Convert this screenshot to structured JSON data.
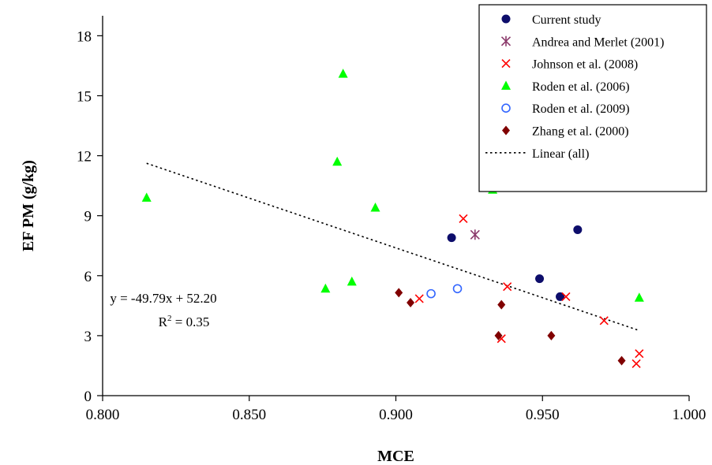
{
  "chart_data": {
    "type": "scatter",
    "title": "",
    "xlabel": "MCE",
    "ylabel": "EF PM (g/kg)",
    "xlim": [
      0.8,
      1.0
    ],
    "ylim": [
      0,
      19
    ],
    "xticks": [
      "0.800",
      "0.850",
      "0.900",
      "0.950",
      "1.000"
    ],
    "yticks": [
      "0",
      "3",
      "6",
      "9",
      "12",
      "15",
      "18"
    ],
    "grid": false,
    "legend_position": "top-right",
    "series": [
      {
        "name": "Current study",
        "marker": "circle-filled",
        "color": "#0d0d6b",
        "points": [
          [
            0.919,
            7.9
          ],
          [
            0.949,
            5.85
          ],
          [
            0.956,
            4.95
          ],
          [
            0.962,
            8.3
          ]
        ]
      },
      {
        "name": "Andrea and Merlet (2001)",
        "marker": "asterisk",
        "color": "#8b3a6b",
        "points": [
          [
            0.927,
            8.05
          ]
        ]
      },
      {
        "name": "Johnson et al. (2008)",
        "marker": "x",
        "color": "#ff0000",
        "points": [
          [
            0.908,
            4.85
          ],
          [
            0.923,
            8.85
          ],
          [
            0.936,
            2.85
          ],
          [
            0.938,
            5.45
          ],
          [
            0.958,
            4.95
          ],
          [
            0.971,
            3.75
          ],
          [
            0.983,
            2.1
          ],
          [
            0.982,
            1.6
          ]
        ]
      },
      {
        "name": "Roden et al. (2006)",
        "marker": "triangle-filled",
        "color": "#00ff00",
        "points": [
          [
            0.815,
            9.9
          ],
          [
            0.876,
            5.35
          ],
          [
            0.88,
            11.7
          ],
          [
            0.882,
            16.1
          ],
          [
            0.885,
            5.7
          ],
          [
            0.893,
            9.4
          ],
          [
            0.933,
            10.3
          ],
          [
            0.983,
            4.9
          ]
        ]
      },
      {
        "name": "Roden et al. (2009)",
        "marker": "circle-open",
        "color": "#3366ff",
        "points": [
          [
            0.912,
            5.1
          ],
          [
            0.921,
            5.35
          ]
        ]
      },
      {
        "name": "Zhang et al. (2000)",
        "marker": "diamond-filled",
        "color": "#800000",
        "points": [
          [
            0.901,
            5.15
          ],
          [
            0.905,
            4.65
          ],
          [
            0.935,
            3.0
          ],
          [
            0.936,
            4.55
          ],
          [
            0.953,
            3.0
          ],
          [
            0.977,
            1.75
          ]
        ]
      }
    ],
    "trendline": {
      "name": "Linear (all)",
      "style": "dotted",
      "color": "#000000",
      "slope": -49.79,
      "intercept": 52.2,
      "x_range": [
        0.815,
        0.983
      ]
    },
    "annotations": {
      "equation": "y = -49.79x + 52.20",
      "r2_prefix": "R",
      "r2_sup": "2",
      "r2_suffix": " = 0.35"
    }
  }
}
